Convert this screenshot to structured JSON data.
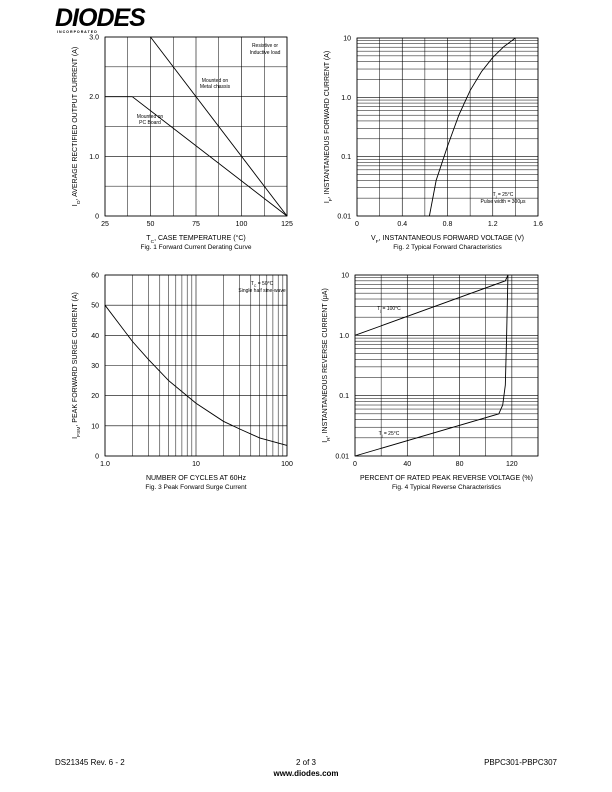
{
  "header": {
    "logo": "DIODES",
    "sub": "I N C O R P O R A T E D"
  },
  "footer": {
    "left": "DS21345 Rev. 6 - 2",
    "center": "2 of 3",
    "url": "www.diodes.com",
    "right": "PBPC301-PBPC307"
  },
  "chart_data": [
    {
      "type": "line",
      "caption": "Fig. 1  Forward Current Derating Curve",
      "xlabel": [
        "T",
        "C",
        ", CASE TEMPERATURE (°C)"
      ],
      "ylabel": [
        "I",
        "O",
        ", AVERAGE RECTIFIED OUTPUT CURRENT (A)"
      ],
      "xlim": [
        25,
        125
      ],
      "xticks": [
        25,
        50,
        75,
        100,
        125
      ],
      "minor_xticks": [
        37.5,
        62.5,
        87.5,
        112.5
      ],
      "ylim": [
        0,
        3
      ],
      "yticks": [
        0,
        {
          "value": 1,
          "label": "1.0"
        },
        {
          "value": 2,
          "label": "2.0"
        },
        {
          "value": 3,
          "label": "3.0"
        }
      ],
      "minor_yticks": [
        0.5,
        1.5,
        2.5
      ],
      "grid": true,
      "annotations": [
        [
          "Resistive or",
          "Inductive load"
        ]
      ],
      "series": [
        {
          "label": [
            "Mounted on",
            "Metal chassis"
          ],
          "color": "#000000",
          "x": [
            50,
            125
          ],
          "values": [
            3,
            0
          ]
        },
        {
          "label": [
            "Mounted on",
            "PC Board"
          ],
          "color": "#000000",
          "x": [
            25,
            40,
            125
          ],
          "values": [
            2,
            2,
            0
          ]
        }
      ]
    },
    {
      "type": "line",
      "caption": "Fig. 2  Typical Forward Characteristics",
      "xlabel": [
        "V",
        "F",
        ", INSTANTANEOUS FORWARD VOLTAGE (V)"
      ],
      "ylabel": [
        "I",
        "F",
        ", INSTANTANEOUS FORWARD CURRENT (A)"
      ],
      "xlim": [
        0,
        1.6
      ],
      "xticks": [
        0,
        0.4,
        0.8,
        1.2,
        1.6
      ],
      "minor_xticks": [
        0.2,
        0.6,
        1.0,
        1.4
      ],
      "ylim": [
        0.01,
        10
      ],
      "ylog": true,
      "yticks": [
        0.01,
        0.1,
        {
          "value": 1,
          "label": "1.0"
        },
        10
      ],
      "minor_yticks": [
        0.02,
        0.03,
        0.04,
        0.05,
        0.06,
        0.07,
        0.08,
        0.09,
        0.2,
        0.3,
        0.4,
        0.5,
        0.6,
        0.7,
        0.8,
        0.9,
        2,
        3,
        4,
        5,
        6,
        7,
        8,
        9
      ],
      "grid": true,
      "annotations": [
        [
          [
            "T",
            "j",
            " = 25°C"
          ],
          "Pulse width = 300μs"
        ]
      ],
      "series": [
        {
          "color": "#000000",
          "x": [
            0.64,
            0.7,
            0.8,
            0.9,
            1.0,
            1.1,
            1.2,
            1.3,
            1.4
          ],
          "values": [
            0.01,
            0.04,
            0.15,
            0.5,
            1.3,
            2.7,
            4.7,
            7.2,
            10
          ]
        }
      ]
    },
    {
      "type": "line",
      "caption": "Fig. 3  Peak Forward Surge Current",
      "xlabel": [
        "NUMBER OF CYCLES AT 60Hz"
      ],
      "ylabel": [
        "I",
        "FSM",
        ", PEAK FORWARD SURGE CURRENT (A)"
      ],
      "xlim": [
        1,
        100
      ],
      "xlog": true,
      "xticks": [
        {
          "value": 1,
          "label": "1.0"
        },
        10,
        100
      ],
      "minor_xticks": [
        2,
        3,
        4,
        5,
        6,
        7,
        8,
        9,
        20,
        30,
        40,
        50,
        60,
        70,
        80,
        90
      ],
      "ylim": [
        0,
        60
      ],
      "yticks": [
        0,
        10,
        20,
        30,
        40,
        50,
        60
      ],
      "grid": true,
      "annotations": [
        [
          [
            "T",
            "C",
            " = 50°C"
          ],
          "Single half sine-wave"
        ]
      ],
      "series": [
        {
          "color": "#000000",
          "x": [
            1,
            2,
            3,
            5,
            10,
            20,
            30,
            50,
            100
          ],
          "values": [
            50,
            38,
            32,
            25,
            17.5,
            11.5,
            9,
            6,
            3.5
          ]
        }
      ]
    },
    {
      "type": "line",
      "caption": "Fig. 4  Typical Reverse Characteristics",
      "xlabel": [
        "PERCENT OF RATED PEAK REVERSE VOLTAGE (%)"
      ],
      "ylabel": [
        "I",
        "R",
        ", INSTANTANEOUS REVERSE CURRENT (μA)"
      ],
      "xlim": [
        0,
        140
      ],
      "xticks": [
        0,
        40,
        80,
        120
      ],
      "minor_xticks": [
        20,
        60,
        100,
        140
      ],
      "ylim": [
        0.01,
        10
      ],
      "ylog": true,
      "yticks": [
        0.01,
        0.1,
        {
          "value": 1,
          "label": "1.0"
        },
        10
      ],
      "minor_yticks": [
        0.02,
        0.03,
        0.04,
        0.05,
        0.06,
        0.07,
        0.08,
        0.09,
        0.2,
        0.3,
        0.4,
        0.5,
        0.6,
        0.7,
        0.8,
        0.9,
        2,
        3,
        4,
        5,
        6,
        7,
        8,
        9
      ],
      "grid": true,
      "annotations": [],
      "series": [
        {
          "label": [
            [
              "T",
              "j",
              " = 100°C"
            ]
          ],
          "color": "#000000",
          "x": [
            0,
            115,
            117
          ],
          "values": [
            1.0,
            8,
            10
          ]
        },
        {
          "label": [
            [
              "T",
              "j",
              " = 25°C"
            ]
          ],
          "color": "#000000",
          "x": [
            0,
            110,
            113,
            115,
            116,
            117
          ],
          "values": [
            0.01,
            0.05,
            0.07,
            0.15,
            1,
            10
          ]
        }
      ]
    }
  ]
}
